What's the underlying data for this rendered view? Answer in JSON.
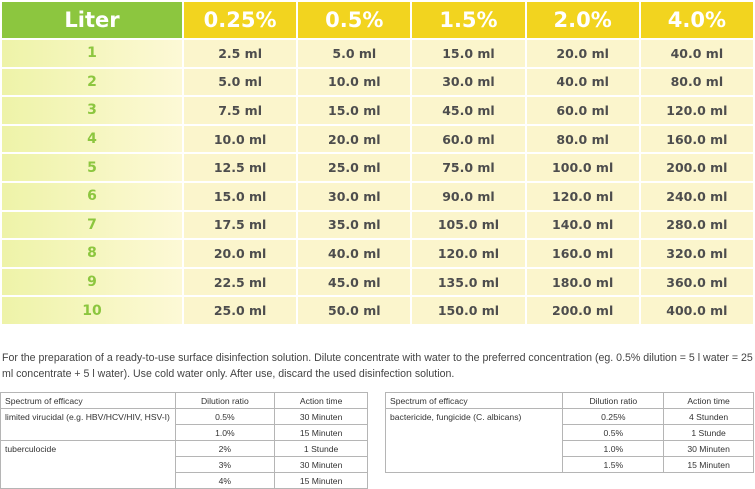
{
  "dilution_table": {
    "headers": [
      "Liter",
      "0.25%",
      "0.5%",
      "1.5%",
      "2.0%",
      "4.0%"
    ],
    "rows": [
      [
        "1",
        "2.5 ml",
        "5.0 ml",
        "15.0 ml",
        "20.0 ml",
        "40.0 ml"
      ],
      [
        "2",
        "5.0 ml",
        "10.0 ml",
        "30.0 ml",
        "40.0 ml",
        "80.0 ml"
      ],
      [
        "3",
        "7.5 ml",
        "15.0 ml",
        "45.0 ml",
        "60.0 ml",
        "120.0 ml"
      ],
      [
        "4",
        "10.0 ml",
        "20.0 ml",
        "60.0 ml",
        "80.0 ml",
        "160.0 ml"
      ],
      [
        "5",
        "12.5 ml",
        "25.0 ml",
        "75.0 ml",
        "100.0 ml",
        "200.0 ml"
      ],
      [
        "6",
        "15.0 ml",
        "30.0 ml",
        "90.0 ml",
        "120.0 ml",
        "240.0 ml"
      ],
      [
        "7",
        "17.5 ml",
        "35.0 ml",
        "105.0 ml",
        "140.0 ml",
        "280.0 ml"
      ],
      [
        "8",
        "20.0 ml",
        "40.0 ml",
        "120.0 ml",
        "160.0 ml",
        "320.0 ml"
      ],
      [
        "9",
        "22.5 ml",
        "45.0 ml",
        "135.0 ml",
        "180.0 ml",
        "360.0 ml"
      ],
      [
        "10",
        "25.0 ml",
        "50.0 ml",
        "150.0 ml",
        "200.0 ml",
        "400.0 ml"
      ]
    ]
  },
  "note": "For the preparation of a ready-to-use surface disinfection solution. Dilute concentrate with water to the preferred concentration (eg. 0.5% dilution = 5 l water = 25 ml concentrate + 5 l water). Use cold water only. After use, discard the used disinfection solution.",
  "spectrum_left": {
    "headers": [
      "Spectrum of efficacy",
      "Dilution ratio",
      "Action time"
    ],
    "rows": [
      [
        "limited virucidal (e.g. HBV/HCV/HIV, HSV-I)",
        "0.5%",
        "30 Minuten"
      ],
      [
        "",
        "1.0%",
        "15 Minuten"
      ],
      [
        "tuberculocide",
        "2%",
        "1 Stunde"
      ],
      [
        "",
        "3%",
        "30 Minuten"
      ],
      [
        "",
        "4%",
        "15 Minuten"
      ]
    ]
  },
  "spectrum_right": {
    "headers": [
      "Spectrum of efficacy",
      "Dilution ratio",
      "Action time"
    ],
    "rows": [
      [
        "bactericide, fungicide (C. albicans)",
        "0.25%",
        "4 Stunden"
      ],
      [
        "",
        "0.5%",
        "1 Stunde"
      ],
      [
        "",
        "1.0%",
        "30 Minuten"
      ],
      [
        "",
        "1.5%",
        "15 Minuten"
      ]
    ]
  },
  "colors": {
    "header_green": "#8cc63f",
    "header_yellow": "#f2d41f",
    "cell_bg": "#fbf5cc"
  }
}
